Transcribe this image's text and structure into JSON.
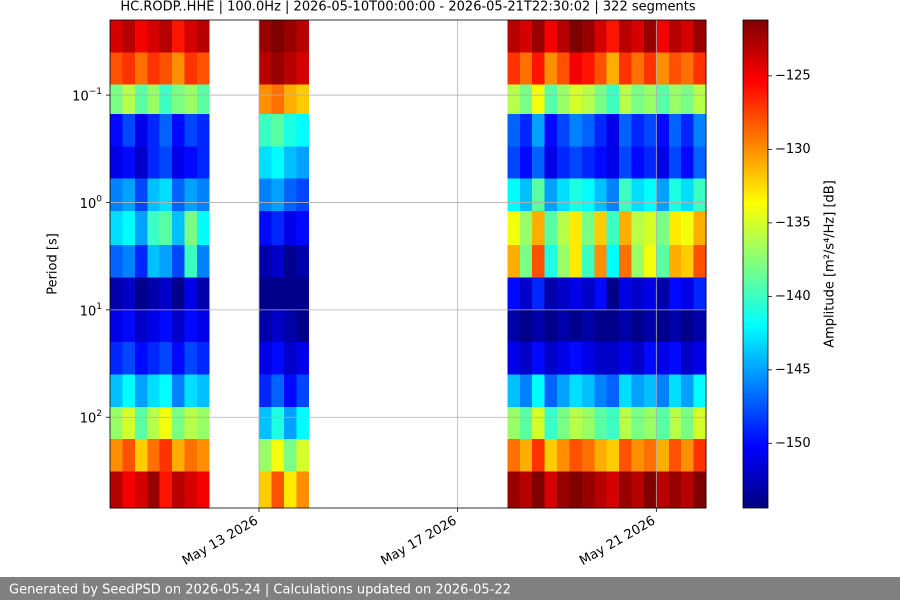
{
  "chart_data": {
    "type": "heatmap",
    "title": "HC.RODP..HHE | 100.0Hz | 2026-05-10T00:00:00 - 2026-05-21T22:30:02 | 322 segments",
    "y_label": "Period [s]",
    "colorbar_label": "Amplitude [m²/s⁴/Hz] [dB]",
    "footer": "Generated by SeedPSD on 2026-05-24 | Calculations updated on 2026-05-22",
    "x_bins": [
      "2026-05-10T00:00",
      "2026-05-10T06:00",
      "2026-05-10T12:00",
      "2026-05-10T18:00",
      "2026-05-11T00:00",
      "2026-05-11T06:00",
      "2026-05-11T12:00",
      "2026-05-11T18:00",
      "2026-05-12T00:00",
      "2026-05-13T00:00",
      "2026-05-13T06:00",
      "2026-05-13T12:00",
      "2026-05-13T18:00",
      "2026-05-14T00:00",
      "2026-05-18T00:00",
      "2026-05-18T06:00",
      "2026-05-18T12:00",
      "2026-05-18T18:00",
      "2026-05-19T00:00",
      "2026-05-19T06:00",
      "2026-05-19T12:00",
      "2026-05-19T18:00",
      "2026-05-20T00:00",
      "2026-05-20T06:00",
      "2026-05-20T12:00",
      "2026-05-20T18:00",
      "2026-05-21T00:00",
      "2026-05-21T06:00",
      "2026-05-21T12:00",
      "2026-05-21T18:00",
      "2026-05-22T00:00"
    ],
    "period_bins": [
      0.02,
      0.04,
      0.08,
      0.15,
      0.3,
      0.6,
      1.2,
      2.5,
      5,
      10,
      20,
      40,
      80,
      160,
      320,
      700
    ],
    "z": [
      [
        -124,
        -123,
        -125,
        -124,
        -123,
        -126,
        -124,
        -123,
        null,
        -122,
        -121,
        -122,
        -123,
        null,
        -123,
        -124,
        -122,
        -125,
        -123,
        -121,
        -122,
        -124,
        -126,
        -123,
        -124,
        -122,
        -125,
        -123,
        -124,
        -122
      ],
      [
        -128,
        -127,
        -129,
        -127,
        -128,
        -130,
        -127,
        -128,
        null,
        -123,
        -122,
        -123,
        -124,
        null,
        -127,
        -129,
        -126,
        -130,
        -128,
        -125,
        -126,
        -128,
        -131,
        -127,
        -129,
        -127,
        -130,
        -128,
        -129,
        -127
      ],
      [
        -138,
        -136,
        -139,
        -137,
        -140,
        -138,
        -137,
        -139,
        null,
        -130,
        -129,
        -131,
        -132,
        null,
        -136,
        -138,
        -134,
        -139,
        -137,
        -135,
        -136,
        -138,
        -140,
        -136,
        -138,
        -137,
        -139,
        -137,
        -138,
        -136
      ],
      [
        -150,
        -148,
        -151,
        -149,
        -147,
        -150,
        -148,
        -149,
        null,
        -140,
        -139,
        -141,
        -142,
        null,
        -147,
        -149,
        -145,
        -150,
        -148,
        -146,
        -147,
        -149,
        -151,
        -147,
        -149,
        -148,
        -150,
        -147,
        -149,
        -146
      ],
      [
        -151,
        -150,
        -152,
        -149,
        -148,
        -151,
        -150,
        -149,
        null,
        -143,
        -142,
        -144,
        -145,
        null,
        -148,
        -150,
        -147,
        -151,
        -149,
        -148,
        -149,
        -150,
        -151,
        -148,
        -150,
        -149,
        -151,
        -148,
        -150,
        -147
      ],
      [
        -146,
        -145,
        -148,
        -144,
        -143,
        -147,
        -145,
        -146,
        null,
        -146,
        -145,
        -147,
        -148,
        null,
        -142,
        -144,
        -139,
        -145,
        -143,
        -141,
        -142,
        -144,
        -146,
        -140,
        -143,
        -142,
        -145,
        -141,
        -143,
        -140
      ],
      [
        -143,
        -142,
        -145,
        -140,
        -139,
        -144,
        -138,
        -142,
        null,
        -150,
        -149,
        -151,
        -150,
        null,
        -134,
        -137,
        -131,
        -139,
        -136,
        -133,
        -138,
        -132,
        -140,
        -131,
        -136,
        -135,
        -138,
        -133,
        -134,
        -131
      ],
      [
        -147,
        -146,
        -149,
        -144,
        -145,
        -148,
        -140,
        -146,
        null,
        -153,
        -152,
        -154,
        -153,
        null,
        -131,
        -138,
        -128,
        -141,
        -137,
        -133,
        -140,
        -130,
        -142,
        -129,
        -137,
        -134,
        -139,
        -131,
        -132,
        -128
      ],
      [
        -153,
        -152,
        -154,
        -153,
        -152,
        -154,
        -151,
        -153,
        null,
        -154,
        -154,
        -154,
        -154,
        null,
        -150,
        -152,
        -149,
        -153,
        -152,
        -151,
        -152,
        -150,
        -154,
        -151,
        -152,
        -151,
        -153,
        -150,
        -151,
        -149
      ],
      [
        -151,
        -150,
        -152,
        -151,
        -150,
        -152,
        -150,
        -151,
        null,
        -153,
        -152,
        -153,
        -154,
        null,
        -153,
        -154,
        -153,
        -154,
        -153,
        -154,
        -153,
        -154,
        -154,
        -153,
        -154,
        -153,
        -154,
        -153,
        -154,
        -153
      ],
      [
        -149,
        -148,
        -150,
        -149,
        -148,
        -150,
        -148,
        -149,
        null,
        -151,
        -150,
        -152,
        -151,
        null,
        -151,
        -152,
        -150,
        -152,
        -151,
        -150,
        -151,
        -152,
        -152,
        -151,
        -152,
        -150,
        -151,
        -150,
        -152,
        -151
      ],
      [
        -144,
        -142,
        -145,
        -143,
        -142,
        -146,
        -143,
        -144,
        null,
        -149,
        -147,
        -150,
        -148,
        null,
        -144,
        -146,
        -142,
        -147,
        -145,
        -143,
        -144,
        -146,
        -147,
        -143,
        -145,
        -144,
        -146,
        -143,
        -145,
        -142
      ],
      [
        -137,
        -135,
        -139,
        -136,
        -134,
        -138,
        -136,
        -137,
        null,
        -144,
        -141,
        -145,
        -142,
        null,
        -137,
        -139,
        -135,
        -140,
        -138,
        -136,
        -137,
        -139,
        -140,
        -136,
        -138,
        -137,
        -139,
        -136,
        -138,
        -135
      ],
      [
        -130,
        -128,
        -132,
        -129,
        -127,
        -131,
        -129,
        -130,
        null,
        -137,
        -134,
        -138,
        -135,
        null,
        -129,
        -131,
        -127,
        -132,
        -130,
        -128,
        -129,
        -131,
        -132,
        -128,
        -130,
        -129,
        -131,
        -128,
        -130,
        -127
      ],
      [
        -123,
        -125,
        -124,
        -122,
        -126,
        -123,
        -124,
        -125,
        null,
        -132,
        -128,
        -133,
        -130,
        null,
        -122,
        -123,
        -121,
        -124,
        -122,
        -121,
        -122,
        -123,
        -124,
        -122,
        -123,
        -121,
        -123,
        -122,
        -123,
        -121
      ]
    ],
    "xlim": [
      "2026-05-10T00:00",
      "2026-05-22T00:00"
    ],
    "xticks": [
      {
        "value": "2026-05-13T00:00",
        "label": "May 13 2026"
      },
      {
        "value": "2026-05-17T00:00",
        "label": "May 17 2026"
      },
      {
        "value": "2026-05-21T00:00",
        "label": "May 21 2026"
      }
    ],
    "ylim": [
      700,
      0.02
    ],
    "yscale": "log",
    "yticks": [
      {
        "value": 0.1,
        "label": "10",
        "exponent": "−1"
      },
      {
        "value": 1,
        "label": "10",
        "exponent": "0"
      },
      {
        "value": 10,
        "label": "10",
        "exponent": "1"
      },
      {
        "value": 100,
        "label": "10",
        "exponent": "2"
      }
    ],
    "clim": [
      -154.4,
      -121.2
    ],
    "cticks": [
      {
        "value": -125,
        "label": "−125"
      },
      {
        "value": -130,
        "label": "−130"
      },
      {
        "value": -135,
        "label": "−135"
      },
      {
        "value": -140,
        "label": "−140"
      },
      {
        "value": -145,
        "label": "−145"
      },
      {
        "value": -150,
        "label": "−150"
      }
    ],
    "colormap": [
      "#00007f",
      "#0000ff",
      "#007fff",
      "#00ffff",
      "#7fff7f",
      "#ffff00",
      "#ff7f00",
      "#ff0000",
      "#7f0000"
    ],
    "grid": true
  }
}
